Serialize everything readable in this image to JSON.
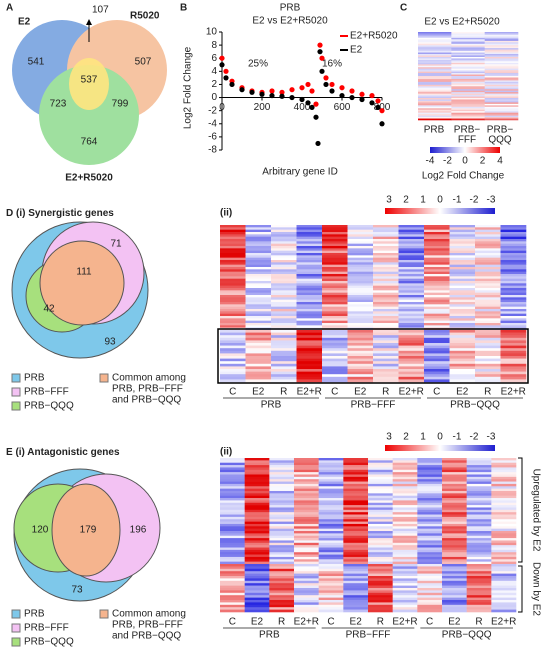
{
  "panel_letters": {
    "A": "A",
    "B": "B",
    "C": "C",
    "D": "D",
    "E": "E"
  },
  "venn_a": {
    "sets": [
      "E2",
      "R5020",
      "E2+R5020"
    ],
    "only_e2": "541",
    "only_r5020": "507",
    "only_combo": "764",
    "e2_r5020_combo": "537",
    "e2_combo": "723",
    "r5020_combo": "799",
    "e2_r5020": "107"
  },
  "chart_data": {
    "type": "scatter",
    "title": "PRB",
    "subtitle": "E2 vs E2+R5020",
    "xlabel": "Arbitrary gene ID",
    "ylabel": "Log2 Fold Change",
    "annotations": [
      "25%",
      "16%"
    ],
    "xlim": [
      0,
      800
    ],
    "xticks": [
      0,
      200,
      400,
      600,
      800
    ],
    "ylim": [
      -8,
      10
    ],
    "yticks": [
      -8,
      -6,
      -4,
      -2,
      0,
      2,
      4,
      6,
      8,
      10
    ],
    "series": [
      {
        "name": "E2+R5020",
        "color": "#ff0000",
        "x": [
          0,
          20,
          50,
          100,
          150,
          200,
          250,
          300,
          350,
          400,
          430,
          450,
          470,
          490,
          500,
          520,
          550,
          600,
          650,
          700,
          750,
          780,
          800
        ],
        "values": [
          6,
          4,
          2.5,
          1.5,
          1,
          0.8,
          1,
          0.8,
          1.2,
          1.5,
          2,
          1,
          -1,
          8,
          6,
          3,
          2,
          1.5,
          1,
          0.5,
          0.3,
          -0.5,
          -2
        ]
      },
      {
        "name": "E2",
        "color": "#000000",
        "x": [
          0,
          20,
          50,
          100,
          150,
          200,
          250,
          300,
          350,
          400,
          430,
          450,
          470,
          480,
          490,
          500,
          520,
          550,
          600,
          650,
          700,
          750,
          780,
          800
        ],
        "values": [
          5,
          3,
          2,
          1.2,
          0.8,
          0.5,
          0.3,
          0.2,
          0,
          -0.3,
          -0.8,
          -1.5,
          -3,
          -7,
          7,
          4,
          2,
          1,
          0.3,
          0,
          -0.3,
          -0.8,
          -1.5,
          -4
        ]
      }
    ]
  },
  "panel_c": {
    "title": "E2 vs E2+R5020",
    "columns": [
      [
        "PRB"
      ],
      [
        "PRB−",
        "FFF"
      ],
      [
        "PRB−",
        "QQQ"
      ]
    ],
    "colorbar_ticks": [
      "-4",
      "-2",
      "0",
      "2",
      "4"
    ],
    "colorbar_label": "Log2 Fold Change"
  },
  "panel_d": {
    "heading": "(i) Synergistic genes",
    "venn": {
      "prb_only": "93",
      "fff": "71",
      "common": "111",
      "qqq": "42"
    },
    "sub": "(ii)"
  },
  "panel_e": {
    "heading": "(i) Antagonistic genes",
    "venn": {
      "prb_only": "73",
      "fff": "196",
      "common": "179",
      "qqq": "120"
    },
    "sub": "(ii)",
    "side_labels": [
      "Upregulated  by E2",
      "Down by E2"
    ]
  },
  "legend": [
    "PRB",
    "PRB−FFF",
    "PRB−QQQ",
    [
      "Common among",
      "PRB, PRB−FFF",
      "and PRB−QQQ"
    ]
  ],
  "heatmap_colorbar": [
    "3",
    "2",
    "1",
    "0",
    "-1",
    "-2",
    "-3"
  ],
  "heatmap_columns": [
    "C",
    "E2",
    "R",
    "E2+R",
    "C",
    "E2",
    "R",
    "E2+R",
    "C",
    "E2",
    "R",
    "E2+R"
  ],
  "heatmap_groups": [
    "PRB",
    "PRB−FFF",
    "PRB−QQQ"
  ]
}
